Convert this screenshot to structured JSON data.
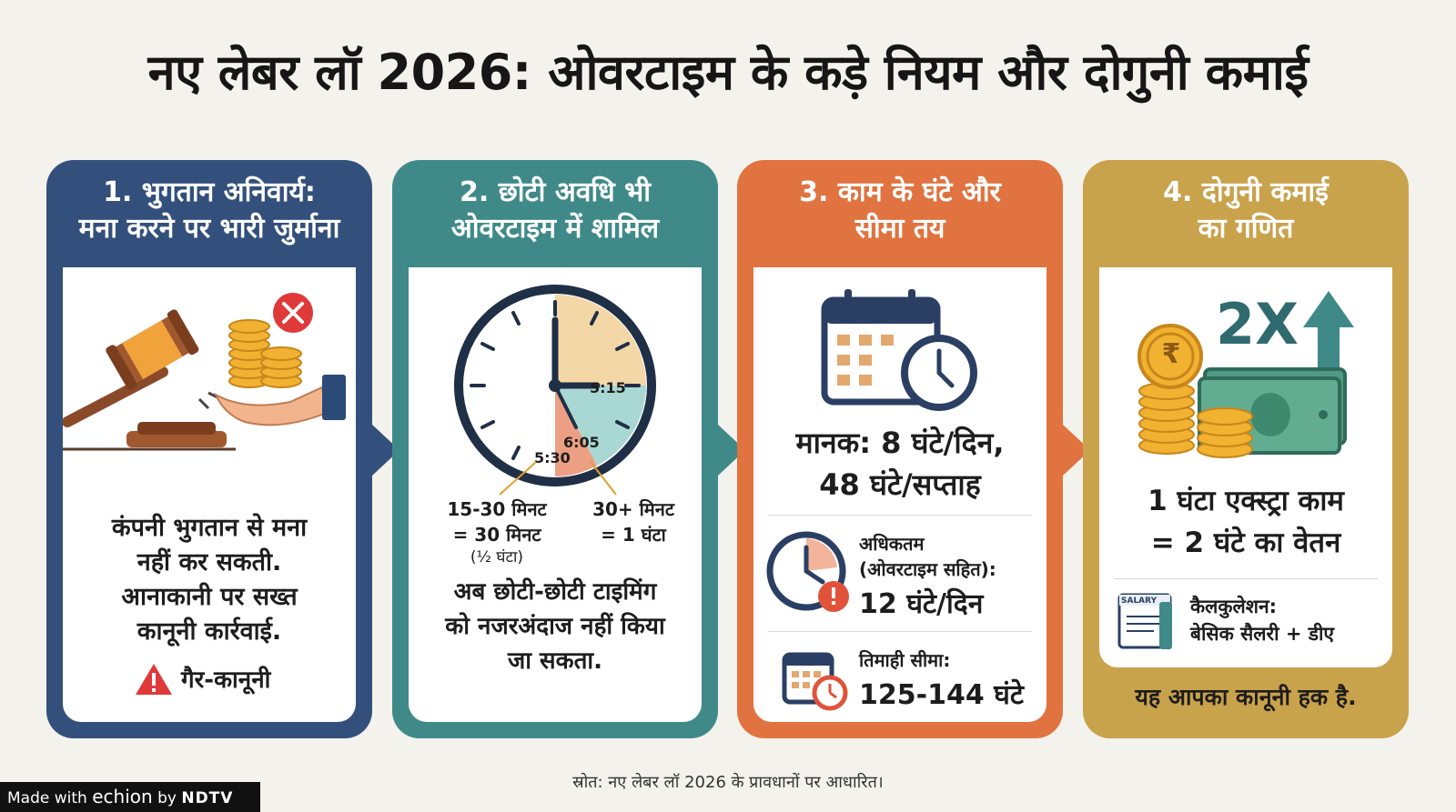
{
  "title": "नए लेबर लॉ 2026: ओवरटाइम के कड़े नियम और दोगुनी कमाई",
  "cards": [
    {
      "heading_line1": "1. भुगतान अनिवार्य:",
      "heading_line2": "मना करने पर भारी जुर्माना",
      "body": [
        "कंपनी भुगतान से मना",
        "नहीं कर सकती.",
        "आनाकानी पर सख्त",
        "कानूनी कार्रवाई."
      ],
      "warning": "गैर-कानूनी",
      "color": "#33507c"
    },
    {
      "heading_line1": "2. छोटी अवधि भी",
      "heading_line2": "ओवरटाइम में शामिल",
      "clock_labels": [
        "5:15",
        "6:05",
        "5:30"
      ],
      "rule_a_line1": "15-30 मिनट",
      "rule_a_line2": "= 30 मिनट",
      "rule_a_note": "(½ घंटा)",
      "rule_b_line1": "30+ मिनट",
      "rule_b_line2": "= 1 घंटा",
      "body": [
        "अब छोटी-छोटी टाइमिंग",
        "को नजरअंदाज नहीं किया",
        "जा सकता."
      ],
      "color": "#3f8a89"
    },
    {
      "heading_line1": "3. काम के घंटे और",
      "heading_line2": "सीमा तय",
      "standard_line1": "मानक: 8 घंटे/दिन,",
      "standard_line2": "48 घंटे/सप्ताह",
      "max_label_line1": "अधिकतम",
      "max_label_line2": "(ओवरटाइम सहित):",
      "max_value": "12 घंटे/दिन",
      "quarter_label": "तिमाही सीमा:",
      "quarter_value": "125-144 घंटे",
      "color": "#e07340"
    },
    {
      "heading_line1": "4. दोगुनी कमाई",
      "heading_line2": "का गणित",
      "multiplier": "2X",
      "rupee": "₹",
      "equation_line1": "1 घंटा एक्स्ट्रा काम",
      "equation_line2": "= 2 घंटे का वेतन",
      "salary_tag": "SALARY",
      "calc_line1": "कैलकुलेशन:",
      "calc_line2": "बेसिक सैलरी + डीए",
      "footer": "यह आपका कानूनी हक है.",
      "color": "#c9a24c"
    }
  ],
  "source": "स्रोत: नए लेबर लॉ 2026 के प्रावधानों पर आधारित।",
  "badge": {
    "made_with": "Made with",
    "brand": "echion",
    "by": "by",
    "network": "NDTV"
  }
}
